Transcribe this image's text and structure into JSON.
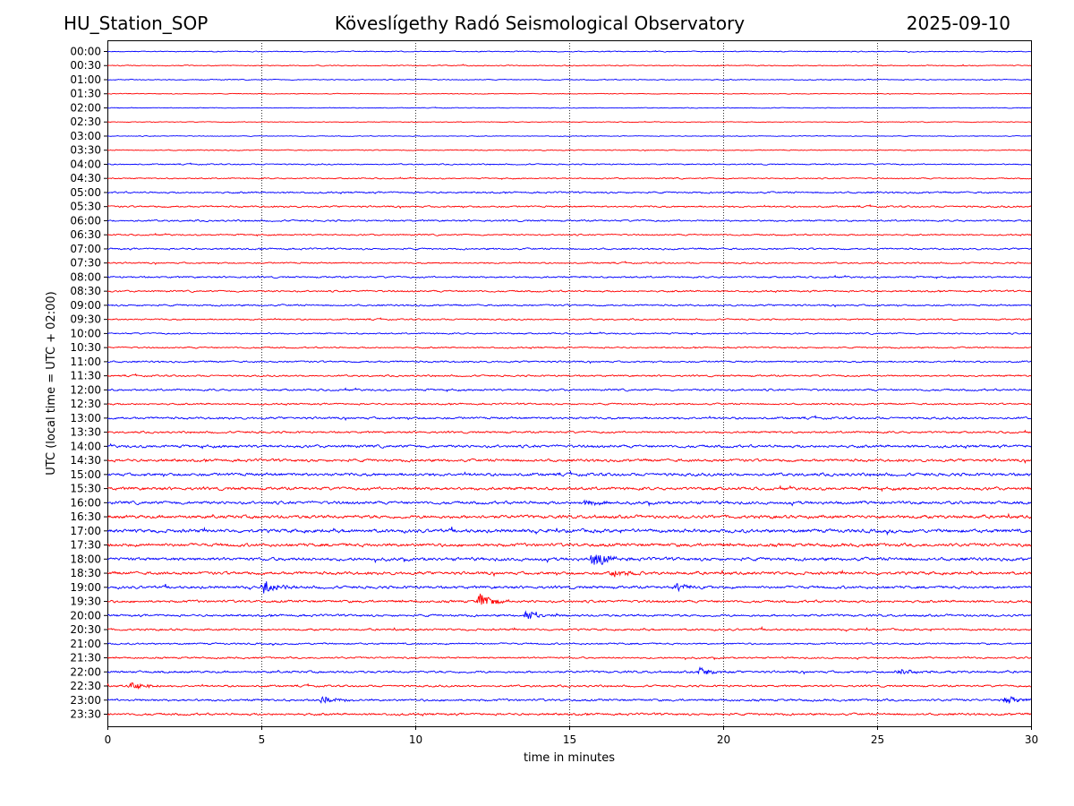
{
  "header": {
    "station": "HU_Station_SOP",
    "observatory": "Köveslígethy Radó Seismological Observatory",
    "date": "2025-09-10"
  },
  "chart_data": {
    "type": "line",
    "title": "Köveslígethy Radó Seismological Observatory",
    "xlabel": "time in minutes",
    "ylabel": "UTC (local time = UTC + 02:00)",
    "xlim": [
      0,
      30
    ],
    "xticks": [
      0,
      5,
      10,
      15,
      20,
      25,
      30
    ],
    "grid": "vertical dotted lines at x ticks",
    "colors": [
      "#0000ff",
      "#ff0000"
    ],
    "row_labels": [
      "00:00",
      "00:30",
      "01:00",
      "01:30",
      "02:00",
      "02:30",
      "03:00",
      "03:30",
      "04:00",
      "04:30",
      "05:00",
      "05:30",
      "06:00",
      "06:30",
      "07:00",
      "07:30",
      "08:00",
      "08:30",
      "09:00",
      "09:30",
      "10:00",
      "10:30",
      "11:00",
      "11:30",
      "12:00",
      "12:30",
      "13:00",
      "13:30",
      "14:00",
      "14:30",
      "15:00",
      "15:30",
      "16:00",
      "16:30",
      "17:00",
      "17:30",
      "18:00",
      "18:30",
      "19:00",
      "19:30",
      "20:00",
      "20:30",
      "21:00",
      "21:30",
      "22:00",
      "22:30",
      "23:00",
      "23:30"
    ],
    "row_noise_level": [
      0.2,
      0.2,
      0.2,
      0.15,
      0.15,
      0.15,
      0.15,
      0.2,
      0.25,
      0.25,
      0.35,
      0.35,
      0.35,
      0.3,
      0.35,
      0.3,
      0.35,
      0.35,
      0.35,
      0.3,
      0.3,
      0.3,
      0.35,
      0.35,
      0.4,
      0.35,
      0.45,
      0.4,
      0.55,
      0.55,
      0.6,
      0.6,
      0.6,
      0.65,
      0.7,
      0.65,
      0.65,
      0.6,
      0.55,
      0.5,
      0.45,
      0.4,
      0.35,
      0.35,
      0.45,
      0.4,
      0.45,
      0.45
    ],
    "events": [
      {
        "row": "18:00",
        "x": 15.8,
        "amp": 1.0
      },
      {
        "row": "19:00",
        "x": 5.1,
        "amp": 0.8
      },
      {
        "row": "19:30",
        "x": 12.1,
        "amp": 0.9
      },
      {
        "row": "20:00",
        "x": 13.6,
        "amp": 0.6
      },
      {
        "row": "18:30",
        "x": 16.4,
        "amp": 0.5
      },
      {
        "row": "22:30",
        "x": 0.8,
        "amp": 0.5
      },
      {
        "row": "23:00",
        "x": 7.0,
        "amp": 0.5
      },
      {
        "row": "23:00",
        "x": 29.2,
        "amp": 0.5
      },
      {
        "row": "22:00",
        "x": 19.3,
        "amp": 0.5
      },
      {
        "row": "22:00",
        "x": 25.7,
        "amp": 0.5
      },
      {
        "row": "19:00",
        "x": 18.5,
        "amp": 0.5
      },
      {
        "row": "16:00",
        "x": 15.5,
        "amp": 0.4
      }
    ]
  }
}
